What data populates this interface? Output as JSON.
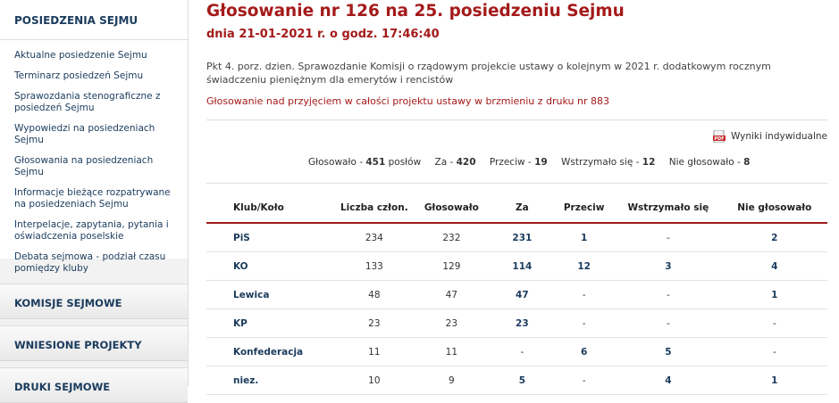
{
  "sidebar": {
    "header": "POSIEDZENIA SEJMU",
    "links": [
      "Aktualne posiedzenie Sejmu",
      "Terminarz posiedzeń Sejmu",
      "Sprawozdania stenograficzne z posiedzeń Sejmu",
      "Wypowiedzi na posiedzeniach Sejmu",
      "Głosowania na posiedzeniach Sejmu",
      "Informacje bieżące rozpatrywane na posiedzeniach Sejmu",
      "Interpelacje, zapytania, pytania i oświadczenia poselskie",
      "Debata sejmowa - podział czasu pomiędzy kluby"
    ],
    "sections": [
      "KOMISJE SEJMOWE",
      "WNIESIONE PROJEKTY",
      "DRUKI SEJMOWE"
    ]
  },
  "main": {
    "title": "Głosowanie nr 126 na 25. posiedzeniu Sejmu",
    "subtitle": "dnia 21-01-2021 r. o godz. 17:46:40",
    "description": "Pkt 4. porz. dzien. Sprawozdanie Komisji o rządowym projekcie ustawy o kolejnym w 2021 r. dodatkowym rocznym świadczeniu pieniężnym dla emerytów i rencistów",
    "vote_link": "Głosowanie nad przyjęciem w całości projektu ustawy w brzmieniu z druku nr 883",
    "pdf_link": "Wyniki indywidualne",
    "summary": {
      "voted_label": "Głosowało - ",
      "voted": "451",
      "voted_unit": " posłów",
      "for_label": "Za - ",
      "for": "420",
      "against_label": "Przeciw - ",
      "against": "19",
      "abstain_label": "Wstrzymało się - ",
      "abstain": "12",
      "absent_label": "Nie głosowało - ",
      "absent": "8"
    }
  },
  "table": {
    "headers": [
      "Klub/Koło",
      "Liczba człon.",
      "Głosowało",
      "Za",
      "Przeciw",
      "Wstrzymało się",
      "Nie głosowało"
    ],
    "rows": [
      [
        "PiS",
        "234",
        "232",
        "231",
        "1",
        "-",
        "2"
      ],
      [
        "KO",
        "133",
        "129",
        "114",
        "12",
        "3",
        "4"
      ],
      [
        "Lewica",
        "48",
        "47",
        "47",
        "-",
        "-",
        "1"
      ],
      [
        "KP",
        "23",
        "23",
        "23",
        "-",
        "-",
        "-"
      ],
      [
        "Konfederacja",
        "11",
        "11",
        "-",
        "6",
        "5",
        "-"
      ],
      [
        "niez.",
        "10",
        "9",
        "5",
        "-",
        "4",
        "1"
      ]
    ]
  },
  "colors": {
    "accent_red": "#a41a1a",
    "link_blue": "#1a3b5c"
  },
  "icons": {
    "pdf": "pdf-icon"
  }
}
